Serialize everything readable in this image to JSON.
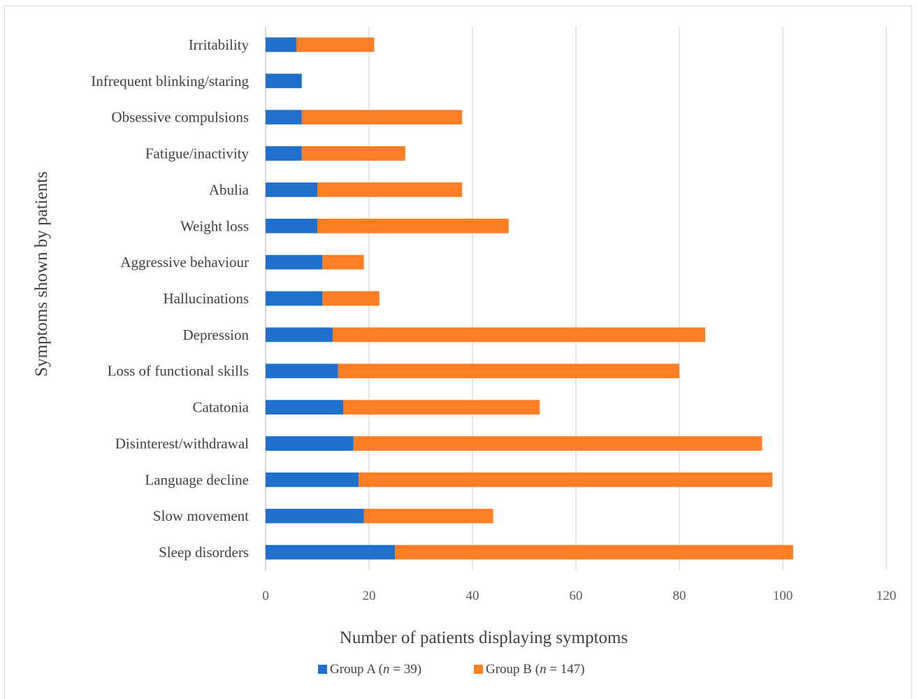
{
  "chart_data": {
    "type": "bar",
    "orientation": "horizontal",
    "stacked": true,
    "categories": [
      "Irritability",
      "Infrequent blinking/staring",
      "Obsessive compulsions",
      "Fatigue/inactivity",
      "Abulia",
      "Weight loss",
      "Aggressive behaviour",
      "Hallucinations",
      "Depression",
      "Loss of functional skills",
      "Catatonia",
      "Disinterest/withdrawal",
      "Language decline",
      "Slow movement",
      "Sleep disorders"
    ],
    "series": [
      {
        "name": "Group A (n = 39)",
        "name_prefix": "Group A (",
        "name_italic": "n",
        "name_suffix": " = 39)",
        "color": "#1f6fcc",
        "values": [
          6,
          7,
          7,
          7,
          10,
          10,
          11,
          11,
          13,
          14,
          15,
          17,
          18,
          19,
          25
        ]
      },
      {
        "name": "Group B (n = 147)",
        "name_prefix": "Group B (",
        "name_italic": "n",
        "name_suffix": " = 147)",
        "color": "#fd7e23",
        "values": [
          15,
          0,
          31,
          20,
          28,
          37,
          8,
          11,
          72,
          66,
          38,
          79,
          80,
          25,
          77
        ]
      }
    ],
    "xlim": [
      0,
      120
    ],
    "xticks": [
      "0",
      "20",
      "40",
      "60",
      "80",
      "100",
      "120"
    ],
    "xlabel": "Number of patients displaying symptoms",
    "ylabel": "Symptoms shown by patients",
    "grid": "vertical",
    "legend": "bottom"
  }
}
